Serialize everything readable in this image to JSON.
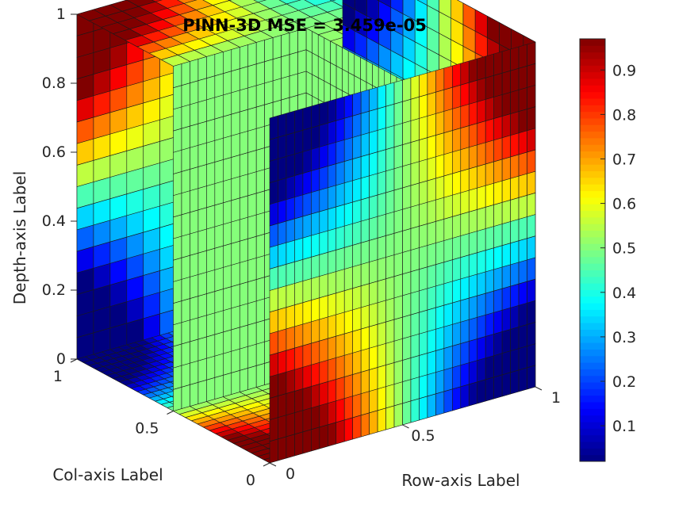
{
  "chart_data": {
    "type": "heatmap",
    "subtype": "3d-slice-volume",
    "title": "PINN-3D MSE = 3.459e-05",
    "xlabel": "Row-axis Label",
    "ylabel": "Col-axis Label",
    "zlabel": "Depth-axis Label",
    "x_ticks": [
      "0",
      "0.5",
      "1"
    ],
    "y_ticks": [
      "0",
      "0.5",
      "1"
    ],
    "z_ticks": [
      "0",
      "0.2",
      "0.4",
      "0.6",
      "0.8",
      "1"
    ],
    "xlim": [
      0,
      1
    ],
    "ylim": [
      0,
      1
    ],
    "zlim": [
      0,
      1
    ],
    "colorbar": {
      "colormap": "jet",
      "range": [
        0.02,
        0.97
      ],
      "ticks": [
        "0.1",
        "0.2",
        "0.3",
        "0.4",
        "0.5",
        "0.6",
        "0.7",
        "0.8",
        "0.9"
      ]
    },
    "slice_value": 0.5,
    "grid_cells": 16
  }
}
